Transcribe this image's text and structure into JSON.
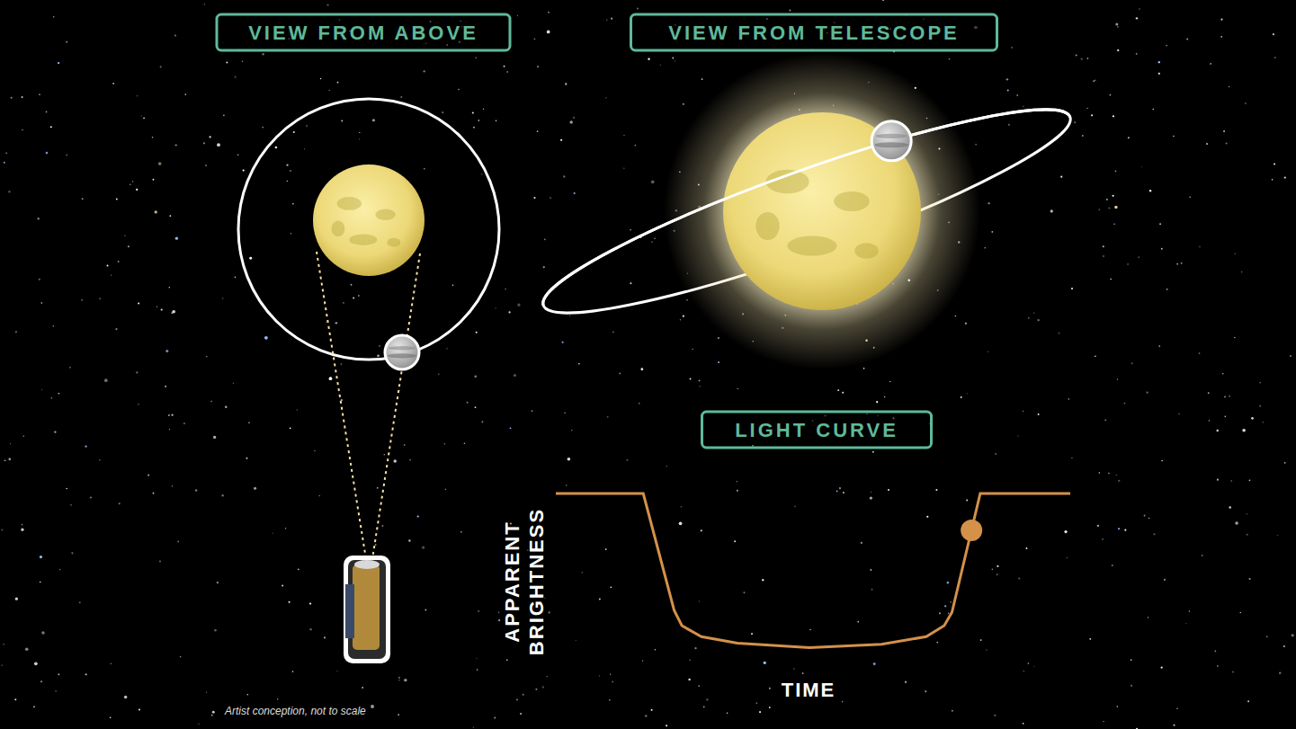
{
  "panels": {
    "view_from_above": {
      "title": "VIEW FROM ABOVE"
    },
    "view_from_telescope": {
      "title": "VIEW FROM TELESCOPE"
    }
  },
  "chart_data": {
    "type": "line",
    "title": "LIGHT CURVE",
    "x_label": "TIME",
    "y_label": "APPARENT BRIGHTNESS",
    "x": [
      0,
      17,
      23,
      24.5,
      28.3,
      35.3,
      49.3,
      63.3,
      72,
      75.5,
      77,
      82.5,
      100
    ],
    "values": [
      80,
      80,
      27,
      20,
      15,
      12,
      10,
      11.5,
      15,
      20,
      26,
      80,
      80
    ],
    "xlim": [
      0,
      100
    ],
    "ylim": [
      0,
      100
    ],
    "tick_labels": false,
    "color": "#d4914a",
    "current_point": {
      "x": 80.8,
      "y": 63.3
    }
  },
  "footnote": "Artist conception, not to scale"
}
